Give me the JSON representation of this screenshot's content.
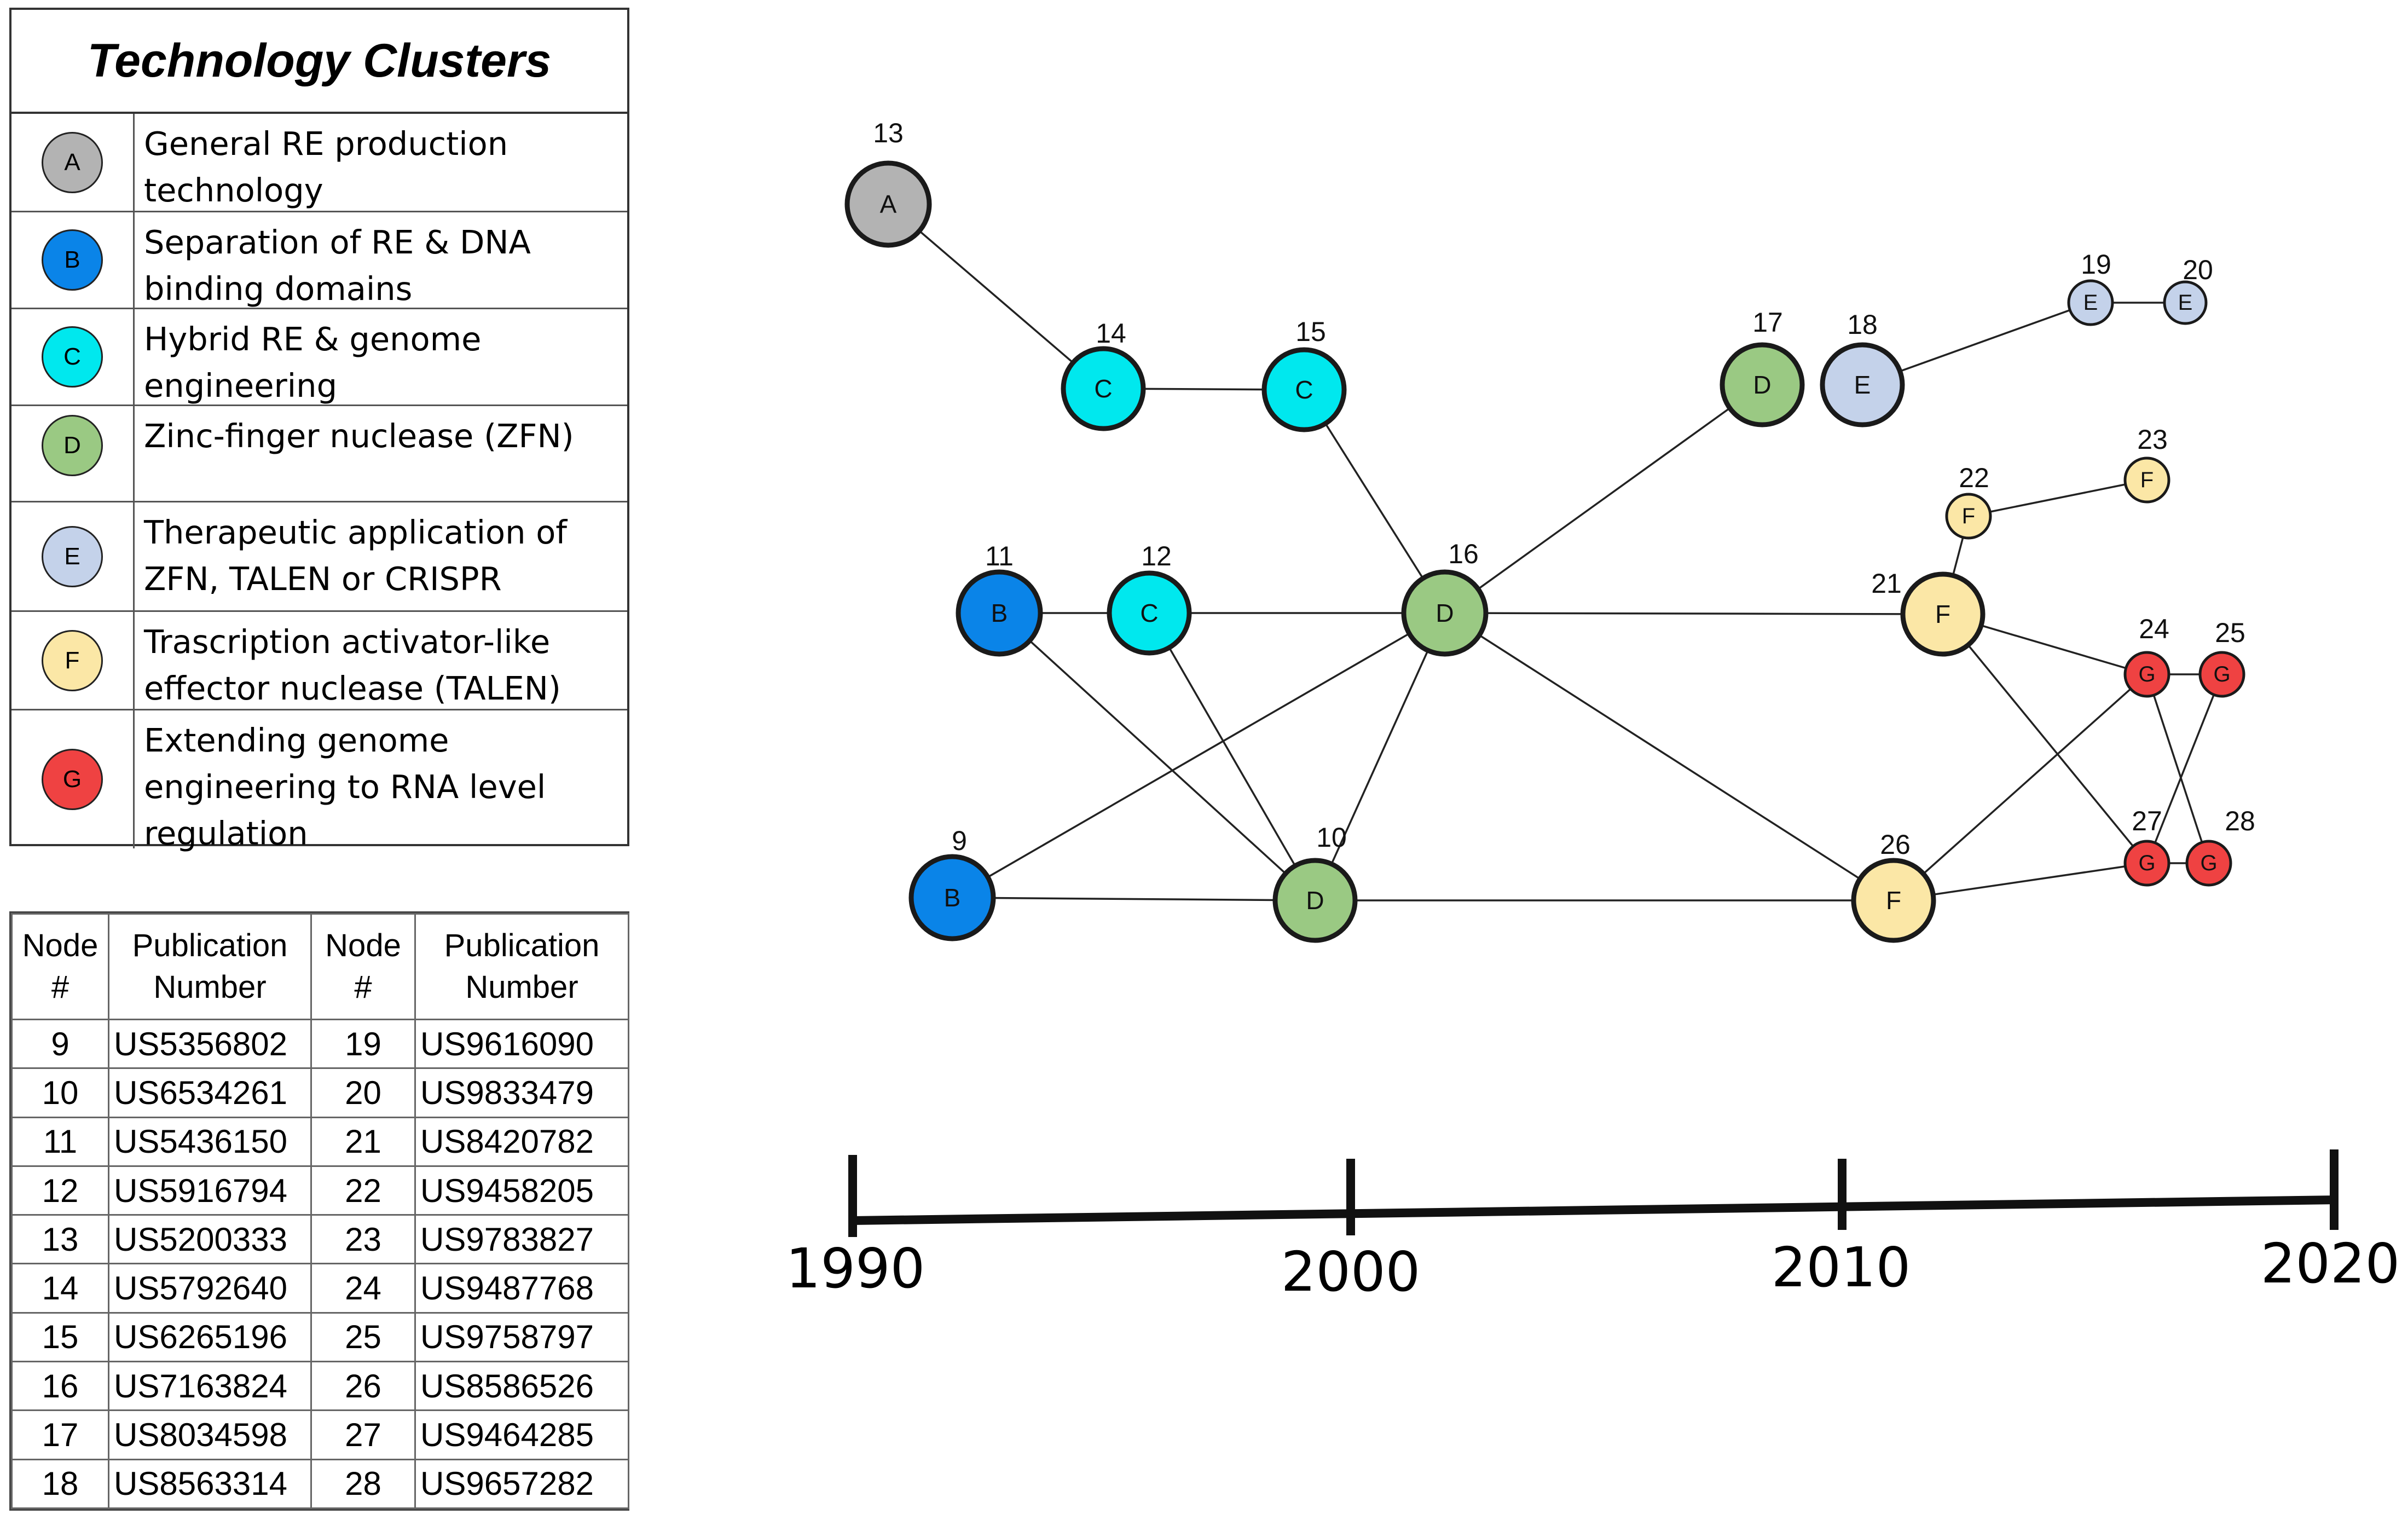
{
  "legend": {
    "title": "Technology Clusters",
    "clusters": [
      {
        "letter": "A",
        "color": "#b3b3b3",
        "line1": "General RE production",
        "line2": "technology",
        "line3": ""
      },
      {
        "letter": "B",
        "color": "#0a84e8",
        "line1": "Separation of RE & DNA",
        "line2": "binding domains",
        "line3": ""
      },
      {
        "letter": "C",
        "color": "#00e8ee",
        "line1": "Hybrid RE & genome",
        "line2": "engineering",
        "line3": ""
      },
      {
        "letter": "D",
        "color": "#9ac983",
        "line1": "Zinc-finger nuclease (ZFN)",
        "line2": "",
        "line3": ""
      },
      {
        "letter": "E",
        "color": "#c4d2ea",
        "line1": "Therapeutic application of",
        "line2": "ZFN, TALEN or CRISPR",
        "line3": ""
      },
      {
        "letter": "F",
        "color": "#fbe7a6",
        "line1": "Trascription activator-like",
        "line2": "effector nuclease (TALEN)",
        "line3": ""
      },
      {
        "letter": "G",
        "color": "#ef4242",
        "line1": "Extending genome",
        "line2": "engineering to RNA level",
        "line3": "regulation"
      }
    ]
  },
  "table": {
    "headers": {
      "node_l1": "Node",
      "node_l2": "#",
      "pub_l1": "Publication",
      "pub_l2": "Number"
    },
    "rows": [
      {
        "n1": "9",
        "p1": "US5356802",
        "n2": "19",
        "p2": "US9616090"
      },
      {
        "n1": "10",
        "p1": "US6534261",
        "n2": "20",
        "p2": "US9833479"
      },
      {
        "n1": "11",
        "p1": "US5436150",
        "n2": "21",
        "p2": "US8420782"
      },
      {
        "n1": "12",
        "p1": "US5916794",
        "n2": "22",
        "p2": "US9458205"
      },
      {
        "n1": "13",
        "p1": "US5200333",
        "n2": "23",
        "p2": "US9783827"
      },
      {
        "n1": "14",
        "p1": "US5792640",
        "n2": "24",
        "p2": "US9487768"
      },
      {
        "n1": "15",
        "p1": "US6265196",
        "n2": "25",
        "p2": "US9758797"
      },
      {
        "n1": "16",
        "p1": "US7163824",
        "n2": "26",
        "p2": "US8586526"
      },
      {
        "n1": "17",
        "p1": "US8034598",
        "n2": "27",
        "p2": "US9464285"
      },
      {
        "n1": "18",
        "p1": "US8563314",
        "n2": "28",
        "p2": "US9657282"
      }
    ]
  },
  "nodes": [
    {
      "id": "13",
      "cluster": "A"
    },
    {
      "id": "14",
      "cluster": "C"
    },
    {
      "id": "15",
      "cluster": "C"
    },
    {
      "id": "17",
      "cluster": "D"
    },
    {
      "id": "18",
      "cluster": "E"
    },
    {
      "id": "19",
      "cluster": "E"
    },
    {
      "id": "20",
      "cluster": "E"
    },
    {
      "id": "22",
      "cluster": "F"
    },
    {
      "id": "23",
      "cluster": "F"
    },
    {
      "id": "11",
      "cluster": "B"
    },
    {
      "id": "12",
      "cluster": "C"
    },
    {
      "id": "16",
      "cluster": "D"
    },
    {
      "id": "21",
      "cluster": "F"
    },
    {
      "id": "24",
      "cluster": "G"
    },
    {
      "id": "25",
      "cluster": "G"
    },
    {
      "id": "9",
      "cluster": "B"
    },
    {
      "id": "10",
      "cluster": "D"
    },
    {
      "id": "26",
      "cluster": "F"
    },
    {
      "id": "27",
      "cluster": "G"
    },
    {
      "id": "28",
      "cluster": "G"
    }
  ],
  "edges": [
    [
      "13",
      "14"
    ],
    [
      "14",
      "15"
    ],
    [
      "15",
      "16"
    ],
    [
      "16",
      "17"
    ],
    [
      "18",
      "19"
    ],
    [
      "19",
      "20"
    ],
    [
      "21",
      "22"
    ],
    [
      "22",
      "23"
    ],
    [
      "11",
      "12"
    ],
    [
      "12",
      "16"
    ],
    [
      "16",
      "21"
    ],
    [
      "11",
      "10"
    ],
    [
      "12",
      "10"
    ],
    [
      "16",
      "10"
    ],
    [
      "16",
      "9"
    ],
    [
      "16",
      "26"
    ],
    [
      "9",
      "10"
    ],
    [
      "10",
      "26"
    ],
    [
      "21",
      "24"
    ],
    [
      "21",
      "27"
    ],
    [
      "24",
      "25"
    ],
    [
      "24",
      "26"
    ],
    [
      "24",
      "28"
    ],
    [
      "25",
      "27"
    ],
    [
      "27",
      "28"
    ],
    [
      "26",
      "27"
    ]
  ],
  "timeline": {
    "labels": [
      "1990",
      "2000",
      "2010",
      "2020"
    ]
  }
}
